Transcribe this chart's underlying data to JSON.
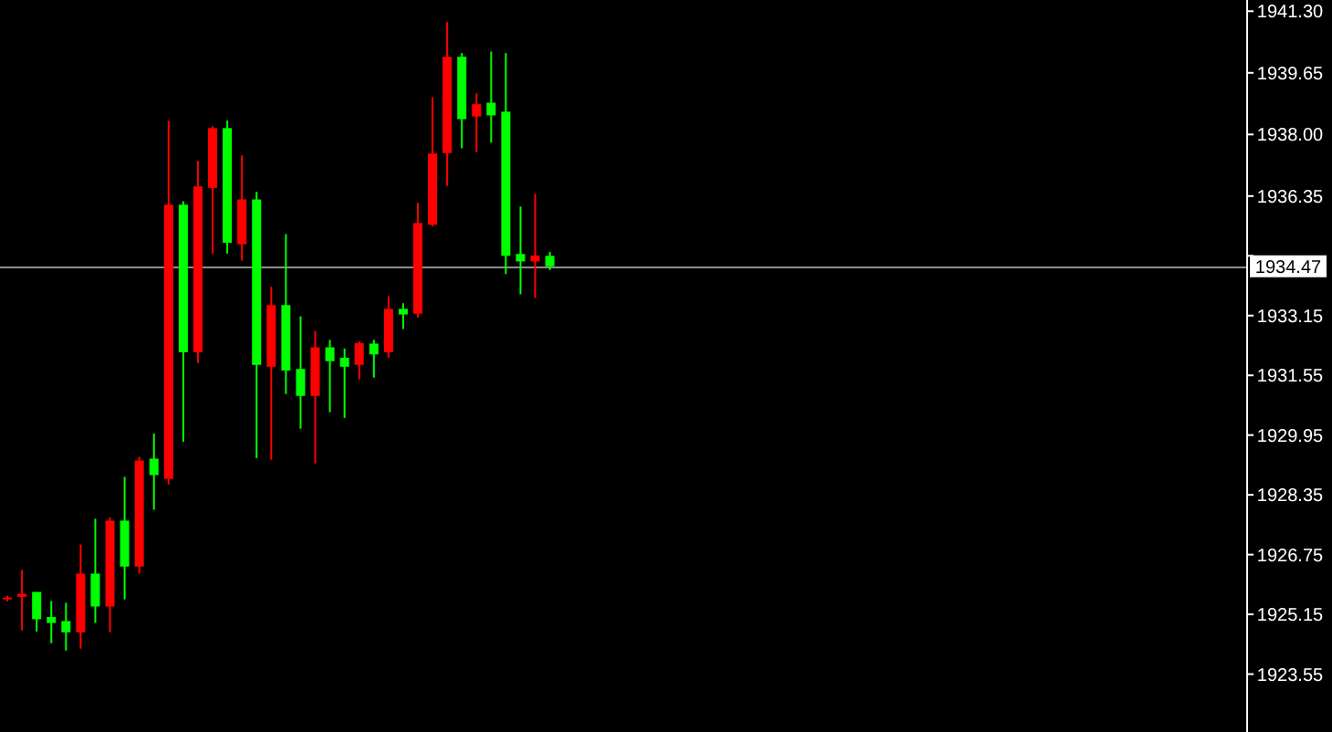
{
  "chart_data": {
    "type": "candlestick",
    "tick_labels": "y",
    "categories": [
      null,
      null,
      null,
      null,
      null,
      null,
      null,
      null,
      null,
      null,
      null,
      null,
      null,
      null,
      null,
      null,
      null,
      null,
      null,
      null,
      null,
      null,
      null,
      null,
      null,
      null,
      null,
      null,
      null,
      null,
      null,
      null,
      null,
      null,
      null,
      null,
      null,
      null,
      null,
      null,
      null,
      null,
      null,
      null,
      null,
      null,
      null,
      null,
      null,
      null,
      null,
      null,
      null,
      null,
      null,
      null,
      null,
      null,
      null,
      null,
      null,
      null,
      null,
      null,
      null,
      null,
      null,
      null,
      null,
      null,
      null,
      null,
      null,
      null,
      null,
      null,
      null,
      null,
      null,
      null,
      null,
      null,
      null,
      null,
      null
    ],
    "ylim": [
      1922.0,
      1941.6
    ],
    "yticks": [
      {
        "value": 1941.3,
        "label": "1941.30"
      },
      {
        "value": 1939.65,
        "label": "1939.65"
      },
      {
        "value": 1938.0,
        "label": "1938.00"
      },
      {
        "value": 1936.35,
        "label": "1936.35"
      },
      {
        "value": 1934.75,
        "label": null
      },
      {
        "value": 1933.15,
        "label": "1933.15"
      },
      {
        "value": 1931.55,
        "label": "1931.55"
      },
      {
        "value": 1929.95,
        "label": "1929.95"
      },
      {
        "value": 1928.35,
        "label": "1928.35"
      },
      {
        "value": 1926.75,
        "label": "1926.75"
      },
      {
        "value": 1925.15,
        "label": "1925.15"
      },
      {
        "value": 1923.55,
        "label": "1923.55"
      }
    ],
    "ohlc": [
      [
        1925.55,
        1925.65,
        1925.5,
        1925.6
      ],
      [
        1925.62,
        1926.34,
        1924.72,
        1925.7
      ],
      [
        1925.75,
        1925.75,
        1924.69,
        1925.02
      ],
      [
        1925.08,
        1925.51,
        1924.38,
        1924.92
      ],
      [
        1924.97,
        1925.46,
        1924.18,
        1924.67
      ],
      [
        1924.67,
        1927.02,
        1924.23,
        1926.24
      ],
      [
        1926.24,
        1927.71,
        1924.92,
        1925.36
      ],
      [
        1925.36,
        1927.75,
        1924.67,
        1927.66
      ],
      [
        1927.66,
        1928.83,
        1925.55,
        1926.43
      ],
      [
        1926.43,
        1929.37,
        1926.24,
        1929.27
      ],
      [
        1929.32,
        1929.99,
        1927.95,
        1928.88
      ],
      [
        1928.78,
        1938.37,
        1928.63,
        1936.12
      ],
      [
        1936.12,
        1936.21,
        1929.77,
        1932.17
      ],
      [
        1932.17,
        1937.29,
        1931.88,
        1936.61
      ],
      [
        1936.57,
        1938.22,
        1934.81,
        1938.17
      ],
      [
        1938.17,
        1938.37,
        1934.81,
        1935.1
      ],
      [
        1935.06,
        1937.44,
        1934.62,
        1936.26
      ],
      [
        1936.26,
        1936.46,
        1929.33,
        1931.83
      ],
      [
        1931.78,
        1933.92,
        1929.29,
        1933.43
      ],
      [
        1933.43,
        1935.33,
        1931.05,
        1931.68
      ],
      [
        1931.72,
        1933.13,
        1930.12,
        1931.0
      ],
      [
        1931.0,
        1932.74,
        1929.19,
        1932.3
      ],
      [
        1932.3,
        1932.5,
        1930.56,
        1931.93
      ],
      [
        1932.02,
        1932.27,
        1930.41,
        1931.78
      ],
      [
        1931.83,
        1932.46,
        1931.44,
        1932.41
      ],
      [
        1932.4,
        1932.5,
        1931.49,
        1932.11
      ],
      [
        1932.17,
        1933.67,
        1932.02,
        1933.33
      ],
      [
        1933.33,
        1933.48,
        1932.79,
        1933.18
      ],
      [
        1933.2,
        1936.17,
        1933.1,
        1935.63
      ],
      [
        1935.58,
        1939.0,
        1935.54,
        1937.49
      ],
      [
        1937.5,
        1941.01,
        1936.62,
        1940.08
      ],
      [
        1940.08,
        1940.18,
        1937.63,
        1938.41
      ],
      [
        1938.48,
        1939.1,
        1937.53,
        1938.81
      ],
      [
        1938.85,
        1940.22,
        1937.78,
        1938.51
      ],
      [
        1938.61,
        1940.18,
        1934.26,
        1934.75
      ],
      [
        1934.8,
        1936.07,
        1933.72,
        1934.6
      ],
      [
        1934.6,
        1936.41,
        1933.62,
        1934.76
      ],
      [
        1934.75,
        1934.85,
        1934.37,
        1934.47
      ],
      null,
      null,
      null,
      null,
      null,
      null,
      null,
      null,
      null,
      null,
      null,
      null,
      null,
      null,
      null,
      null,
      null,
      null,
      null,
      null,
      null,
      null,
      null,
      null,
      null,
      null,
      null,
      null,
      null,
      null,
      null,
      null,
      null,
      null,
      null,
      null,
      null,
      null,
      null,
      null,
      null,
      null,
      null,
      null,
      null,
      null,
      null
    ],
    "colors": [
      "#ff0000",
      "#ff0000",
      "#00ff00",
      "#00ff00",
      "#00ff00",
      "#ff0000",
      "#00ff00",
      "#ff0000",
      "#00ff00",
      "#ff0000",
      "#00ff00",
      "#ff0000",
      "#00ff00",
      "#ff0000",
      "#ff0000",
      "#00ff00",
      "#ff0000",
      "#00ff00",
      "#ff0000",
      "#00ff00",
      "#00ff00",
      "#ff0000",
      "#00ff00",
      "#00ff00",
      "#ff0000",
      "#00ff00",
      "#ff0000",
      "#00ff00",
      "#ff0000",
      "#ff0000",
      "#ff0000",
      "#00ff00",
      "#ff0000",
      "#00ff00",
      "#00ff00",
      "#00ff00",
      "#ff0000",
      "#00ff00",
      null,
      null,
      null,
      null,
      null,
      null,
      null,
      null,
      null,
      null,
      null,
      null,
      null,
      null,
      null,
      null,
      null,
      null,
      null,
      null,
      null,
      null,
      null,
      null,
      null,
      null,
      null,
      null,
      null,
      null,
      null,
      null,
      null,
      null,
      null,
      null,
      null,
      null,
      null,
      null,
      null,
      null,
      null,
      null,
      null,
      null,
      null
    ],
    "ref_lines": [
      {
        "axis": "y",
        "value": 1934.47,
        "label": "1934.47",
        "color": "#8c8c8c"
      }
    ]
  }
}
